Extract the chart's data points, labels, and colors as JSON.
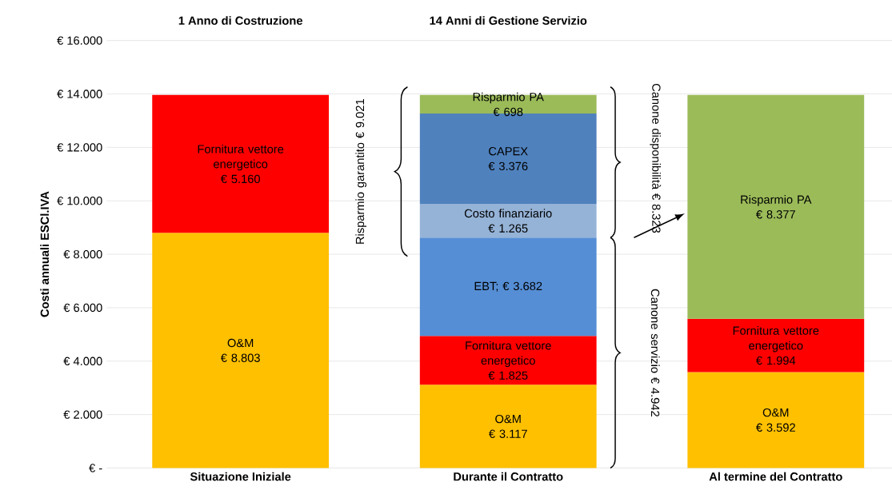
{
  "chart_data": {
    "type": "bar",
    "stacked": true,
    "ylabel": "Costi annuali ESCl.IVA",
    "categories": [
      "Situazione Iniziale",
      "Durante il Contratto",
      "Al termine del Contratto"
    ],
    "series": [
      {
        "name": "O&M",
        "color": "#ffc000",
        "values": [
          8803,
          3117,
          3592
        ],
        "value_labels": [
          "€ 8.803",
          "€ 3.117",
          "€ 3.592"
        ]
      },
      {
        "name": "Fornitura vettore energetico",
        "color": "#ff0000",
        "values": [
          5160,
          1825,
          1994
        ],
        "value_labels": [
          "€ 5.160",
          "€ 1.825",
          "€ 1.994"
        ]
      },
      {
        "name": "EBT;",
        "color": "#558ed5",
        "values": [
          null,
          3682,
          null
        ],
        "value_labels": [
          null,
          "€ 3.682",
          null
        ]
      },
      {
        "name": "Costo finanziario",
        "color": "#95b3d7",
        "values": [
          null,
          1265,
          null
        ],
        "value_labels": [
          null,
          "€ 1.265",
          null
        ]
      },
      {
        "name": "CAPEX",
        "color": "#4f81bd",
        "values": [
          null,
          3376,
          null
        ],
        "value_labels": [
          null,
          "€ 3.376",
          null
        ]
      },
      {
        "name": "Risparmio PA",
        "color": "#9bbb59",
        "values": [
          null,
          698,
          8377
        ],
        "value_labels": [
          null,
          "€ 698",
          "€ 8.377"
        ]
      }
    ],
    "ylim": [
      0,
      16000
    ],
    "yticks": [
      {
        "value": 0,
        "label": "€ -"
      },
      {
        "value": 2000,
        "label": "€ 2.000"
      },
      {
        "value": 4000,
        "label": "€ 4.000"
      },
      {
        "value": 6000,
        "label": "€ 6.000"
      },
      {
        "value": 8000,
        "label": "€ 8.000"
      },
      {
        "value": 10000,
        "label": "€ 10.000"
      },
      {
        "value": 12000,
        "label": "€ 12.000"
      },
      {
        "value": 14000,
        "label": "€ 14.000"
      },
      {
        "value": 16000,
        "label": "€ 16.000"
      }
    ],
    "grid": "y",
    "annotations": [
      "1 Anno di Costruzione",
      "14 Anni di Gestione Servizio",
      "Risparmio garantito € 9.021",
      "Canone disponibilità € 8.323",
      "Canone servizio € 4.942"
    ]
  }
}
